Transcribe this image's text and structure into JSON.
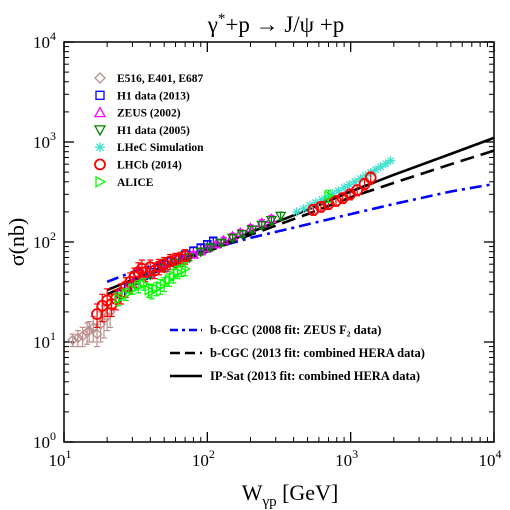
{
  "chart_data": {
    "type": "scatter",
    "title": {
      "main": "γ",
      "sup": "*",
      "rest": "+p → J/ψ +p"
    },
    "xlabel": {
      "main": "W",
      "sub": "γp",
      "rest": " [GeV]"
    },
    "ylabel": "σ(nb)",
    "x_scale": "log",
    "y_scale": "log",
    "xlim": [
      10,
      10000
    ],
    "ylim": [
      1,
      10000
    ],
    "x_ticks": [
      {
        "value": 10,
        "base": "10",
        "exp": "1"
      },
      {
        "value": 100,
        "base": "10",
        "exp": "2"
      },
      {
        "value": 1000,
        "base": "10",
        "exp": "3"
      },
      {
        "value": 10000,
        "base": "10",
        "exp": "4"
      }
    ],
    "y_ticks": [
      {
        "value": 1,
        "base": "10",
        "exp": "0"
      },
      {
        "value": 10,
        "base": "10",
        "exp": "1"
      },
      {
        "value": 100,
        "base": "10",
        "exp": "2"
      },
      {
        "value": 1000,
        "base": "10",
        "exp": "3"
      },
      {
        "value": 10000,
        "base": "10",
        "exp": "4"
      }
    ],
    "grid": false,
    "legend_placement": "top-left",
    "series": [
      {
        "name": "E516, E401, E687",
        "marker": "diamond",
        "color": "#bc8f8f",
        "points": [
          [
            11.5,
            10.5,
            1.5
          ],
          [
            12.5,
            11,
            2
          ],
          [
            13.5,
            11.5,
            2.5
          ],
          [
            14.5,
            12.5,
            3
          ],
          [
            15,
            13,
            3
          ],
          [
            16,
            14,
            4
          ],
          [
            17,
            12,
            3
          ],
          [
            18,
            15,
            5
          ],
          [
            19,
            17,
            6
          ],
          [
            20,
            18,
            5
          ],
          [
            21,
            20,
            6
          ]
        ]
      },
      {
        "name": "H1 data (2013)",
        "marker": "square",
        "color": "#0000ff",
        "points": [
          [
            25,
            30,
            3
          ],
          [
            28,
            35,
            3
          ],
          [
            32,
            41,
            3
          ],
          [
            36,
            46,
            4
          ],
          [
            40,
            50,
            4
          ],
          [
            45,
            55,
            4
          ],
          [
            50,
            60,
            4
          ],
          [
            56,
            64,
            5
          ],
          [
            63,
            70,
            5
          ],
          [
            70,
            75,
            5
          ],
          [
            80,
            82,
            6
          ],
          [
            90,
            88,
            6
          ],
          [
            100,
            95,
            7
          ],
          [
            110,
            103,
            7
          ]
        ]
      },
      {
        "name": "ZEUS (2002)",
        "marker": "triangle-up",
        "color": "#ff00ff",
        "points": [
          [
            30,
            38,
            3
          ],
          [
            40,
            47,
            3
          ],
          [
            50,
            55,
            4
          ],
          [
            60,
            62,
            4
          ],
          [
            70,
            69,
            5
          ],
          [
            80,
            75,
            5
          ],
          [
            90,
            81,
            5
          ],
          [
            100,
            87,
            6
          ],
          [
            115,
            95,
            6
          ],
          [
            130,
            104,
            7
          ],
          [
            150,
            114,
            8
          ],
          [
            170,
            124,
            9
          ],
          [
            200,
            138,
            10
          ],
          [
            240,
            155,
            12
          ],
          [
            280,
            170,
            14
          ]
        ]
      },
      {
        "name": "H1 data (2005)",
        "marker": "triangle-down",
        "color": "#008000",
        "points": [
          [
            40,
            47,
            4
          ],
          [
            50,
            55,
            4
          ],
          [
            60,
            62,
            5
          ],
          [
            75,
            70,
            5
          ],
          [
            90,
            80,
            6
          ],
          [
            105,
            88,
            6
          ],
          [
            125,
            98,
            7
          ],
          [
            150,
            110,
            8
          ],
          [
            175,
            120,
            9
          ],
          [
            205,
            133,
            10
          ],
          [
            240,
            148,
            12
          ],
          [
            280,
            165,
            14
          ],
          [
            325,
            182,
            16
          ]
        ]
      },
      {
        "name": "LHeC Simulation",
        "marker": "asterisk",
        "color": "#40e0d0",
        "points": [
          [
            420,
            200
          ],
          [
            470,
            215
          ],
          [
            520,
            232
          ],
          [
            570,
            248
          ],
          [
            630,
            265
          ],
          [
            690,
            285
          ],
          [
            750,
            305
          ],
          [
            820,
            325
          ],
          [
            900,
            350
          ],
          [
            980,
            375
          ],
          [
            1070,
            400
          ],
          [
            1170,
            430
          ],
          [
            1270,
            460
          ],
          [
            1380,
            495
          ],
          [
            1500,
            530
          ],
          [
            1620,
            565
          ],
          [
            1760,
            605
          ],
          [
            1900,
            650
          ]
        ]
      },
      {
        "name": "LHCb (2014)",
        "marker": "circle",
        "color": "#ff0000",
        "points": [
          [
            17,
            19,
            5
          ],
          [
            18.5,
            23,
            7
          ],
          [
            20,
            26,
            8
          ],
          [
            21.5,
            24,
            6
          ],
          [
            23,
            27,
            6
          ],
          [
            25,
            31,
            7
          ],
          [
            27,
            36,
            8
          ],
          [
            29,
            40,
            9
          ],
          [
            31,
            45,
            10
          ],
          [
            33,
            50,
            12
          ],
          [
            35,
            54,
            12
          ],
          [
            37,
            50,
            10
          ],
          [
            40,
            56,
            10
          ],
          [
            43,
            52,
            9
          ],
          [
            46,
            57,
            10
          ],
          [
            50,
            60,
            10
          ],
          [
            55,
            64,
            11
          ],
          [
            60,
            66,
            11
          ],
          [
            65,
            68,
            11
          ],
          [
            70,
            72,
            12
          ],
          [
            550,
            210,
            25
          ],
          [
            620,
            225,
            26
          ],
          [
            700,
            240,
            28
          ],
          [
            790,
            258,
            30
          ],
          [
            880,
            275,
            32
          ],
          [
            990,
            300,
            36
          ],
          [
            1110,
            330,
            40
          ],
          [
            1250,
            380,
            50
          ],
          [
            1380,
            440,
            60
          ]
        ]
      },
      {
        "name": "ALICE",
        "marker": "triangle-right",
        "color": "#00ff00",
        "points": [
          [
            24,
            27,
            4
          ],
          [
            27,
            30,
            4
          ],
          [
            30,
            34,
            4
          ],
          [
            33,
            36,
            5
          ],
          [
            36,
            38,
            5
          ],
          [
            39,
            33,
            5
          ],
          [
            41,
            32,
            5
          ],
          [
            44,
            34,
            5
          ],
          [
            47,
            36,
            6
          ],
          [
            50,
            38,
            6
          ],
          [
            54,
            42,
            6
          ],
          [
            58,
            46,
            7
          ],
          [
            62,
            50,
            7
          ],
          [
            66,
            52,
            7
          ],
          [
            70,
            54,
            8
          ],
          [
            700,
            290,
            40
          ]
        ]
      }
    ],
    "curves": [
      {
        "name": "b-CGC (2008 fit: ZEUS F₂ data)",
        "style": "dash-dot",
        "color": "#0000ff",
        "points": [
          [
            20,
            40
          ],
          [
            30,
            50
          ],
          [
            50,
            64
          ],
          [
            100,
            84
          ],
          [
            200,
            110
          ],
          [
            500,
            150
          ],
          [
            1000,
            190
          ],
          [
            2000,
            240
          ],
          [
            5000,
            320
          ],
          [
            10000,
            380
          ]
        ]
      },
      {
        "name": "b-CGC (2013 fit: combined HERA data)",
        "style": "dash",
        "color": "#000000",
        "points": [
          [
            20,
            30
          ],
          [
            30,
            39
          ],
          [
            50,
            55
          ],
          [
            100,
            80
          ],
          [
            200,
            118
          ],
          [
            500,
            190
          ],
          [
            1000,
            280
          ],
          [
            2000,
            390
          ],
          [
            5000,
            600
          ],
          [
            10000,
            820
          ]
        ]
      },
      {
        "name": "IP-Sat (2013 fit: combined HERA data)",
        "style": "solid",
        "color": "#000000",
        "points": [
          [
            20,
            33
          ],
          [
            30,
            42
          ],
          [
            50,
            57
          ],
          [
            100,
            83
          ],
          [
            200,
            125
          ],
          [
            500,
            210
          ],
          [
            1000,
            320
          ],
          [
            2000,
            470
          ],
          [
            5000,
            760
          ],
          [
            10000,
            1100
          ]
        ]
      }
    ]
  }
}
